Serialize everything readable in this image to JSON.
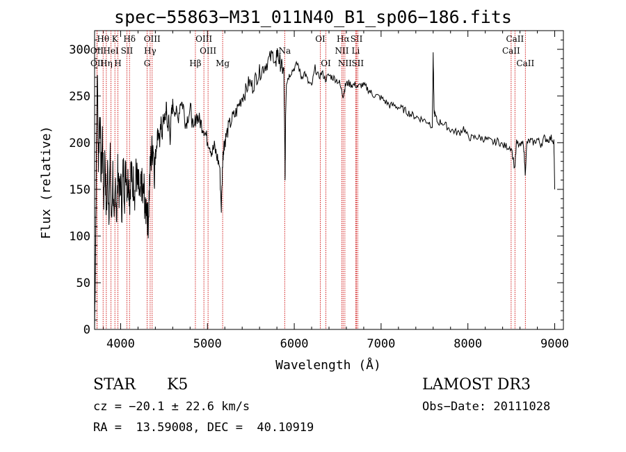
{
  "chart_data": {
    "type": "line",
    "title": "spec−55863−M31_011N40_B1_sp06−186.fits",
    "xlabel": "Wavelength (Å)",
    "ylabel": "Flux (relative)",
    "xlim": [
      3700,
      9100
    ],
    "ylim": [
      0,
      320
    ],
    "xticks": [
      4000,
      5000,
      6000,
      7000,
      8000,
      9000
    ],
    "yticks": [
      0,
      50,
      100,
      150,
      200,
      250,
      300
    ],
    "series": [
      {
        "name": "flux",
        "x": [
          3700,
          3715,
          3730,
          3745,
          3760,
          3775,
          3790,
          3805,
          3820,
          3835,
          3850,
          3865,
          3880,
          3895,
          3910,
          3925,
          3940,
          3955,
          3970,
          3985,
          4000,
          4015,
          4030,
          4045,
          4060,
          4075,
          4090,
          4105,
          4120,
          4135,
          4150,
          4165,
          4180,
          4195,
          4210,
          4225,
          4240,
          4255,
          4270,
          4285,
          4300,
          4315,
          4330,
          4345,
          4360,
          4375,
          4390,
          4405,
          4420,
          4435,
          4450,
          4465,
          4480,
          4495,
          4510,
          4525,
          4540,
          4555,
          4570,
          4585,
          4600,
          4630,
          4660,
          4690,
          4720,
          4750,
          4780,
          4810,
          4840,
          4870,
          4900,
          4930,
          4960,
          4990,
          5020,
          5050,
          5080,
          5110,
          5140,
          5160,
          5175,
          5185,
          5195,
          5210,
          5240,
          5280,
          5320,
          5360,
          5400,
          5440,
          5480,
          5520,
          5560,
          5600,
          5640,
          5680,
          5720,
          5760,
          5790,
          5800,
          5820,
          5840,
          5860,
          5880,
          5890,
          5895,
          5900,
          5910,
          5930,
          5960,
          6000,
          6040,
          6080,
          6120,
          6160,
          6200,
          6240,
          6280,
          6320,
          6360,
          6400,
          6440,
          6480,
          6520,
          6560,
          6575,
          6590,
          6620,
          6660,
          6700,
          6740,
          6780,
          6820,
          6860,
          6900,
          6950,
          7000,
          7050,
          7100,
          7150,
          7200,
          7250,
          7300,
          7350,
          7400,
          7450,
          7500,
          7550,
          7590,
          7600,
          7610,
          7620,
          7650,
          7700,
          7750,
          7800,
          7850,
          7900,
          7950,
          8000,
          8050,
          8100,
          8150,
          8200,
          8250,
          8300,
          8350,
          8400,
          8450,
          8500,
          8540,
          8560,
          8600,
          8640,
          8660,
          8680,
          8720,
          8760,
          8800,
          8840,
          8880,
          8920,
          8960,
          8990,
          9000
        ],
        "values": [
          0,
          120,
          280,
          180,
          240,
          160,
          210,
          140,
          190,
          120,
          170,
          130,
          180,
          110,
          170,
          100,
          160,
          120,
          180,
          140,
          160,
          130,
          175,
          145,
          180,
          150,
          165,
          140,
          175,
          150,
          160,
          145,
          170,
          155,
          150,
          135,
          160,
          140,
          150,
          120,
          140,
          110,
          150,
          180,
          190,
          200,
          170,
          190,
          205,
          215,
          200,
          220,
          210,
          230,
          220,
          240,
          215,
          225,
          205,
          230,
          240,
          235,
          225,
          245,
          240,
          220,
          230,
          235,
          210,
          230,
          225,
          220,
          215,
          205,
          200,
          190,
          195,
          185,
          175,
          130,
          180,
          195,
          200,
          205,
          215,
          225,
          230,
          240,
          250,
          255,
          265,
          260,
          270,
          275,
          280,
          285,
          290,
          295,
          280,
          300,
          290,
          285,
          280,
          275,
          200,
          160,
          230,
          265,
          270,
          275,
          280,
          285,
          270,
          275,
          265,
          260,
          280,
          270,
          275,
          268,
          272,
          270,
          268,
          264,
          250,
          255,
          262,
          264,
          262,
          262,
          260,
          262,
          260,
          256,
          252,
          250,
          248,
          244,
          240,
          240,
          238,
          236,
          233,
          230,
          228,
          226,
          224,
          222,
          218,
          295,
          235,
          230,
          222,
          222,
          218,
          214,
          212,
          210,
          216,
          206,
          205,
          206,
          205,
          204,
          202,
          200,
          202,
          197,
          196,
          195,
          172,
          200,
          196,
          200,
          168,
          200,
          202,
          200,
          204,
          198,
          205,
          203,
          205,
          202,
          150
        ]
      }
    ],
    "lines": [
      {
        "name": "Hθ",
        "wl": 3798,
        "row": 0
      },
      {
        "name": "K",
        "wl": 3934,
        "row": 0
      },
      {
        "name": "Hδ",
        "wl": 4102,
        "row": 0
      },
      {
        "name": "OIII",
        "wl": 4363,
        "row": 0
      },
      {
        "name": "OIII",
        "wl": 4959,
        "row": 0
      },
      {
        "name": "OI",
        "wl": 6300,
        "row": 0
      },
      {
        "name": "Hα",
        "wl": 6563,
        "row": 0
      },
      {
        "name": "SII",
        "wl": 6717,
        "row": 0
      },
      {
        "name": "CaII",
        "wl": 8542,
        "row": 0
      },
      {
        "name": "OII",
        "wl": 3727,
        "row": 1
      },
      {
        "name": "HeI",
        "wl": 3889,
        "row": 1
      },
      {
        "name": "SII",
        "wl": 4072,
        "row": 1
      },
      {
        "name": "Hγ",
        "wl": 4340,
        "row": 1
      },
      {
        "name": "OIII",
        "wl": 5007,
        "row": 1
      },
      {
        "name": "Na",
        "wl": 5890,
        "row": 1
      },
      {
        "name": "NII",
        "wl": 6548,
        "row": 1
      },
      {
        "name": "Li",
        "wl": 6708,
        "row": 1
      },
      {
        "name": "CaII",
        "wl": 8498,
        "row": 1
      },
      {
        "name": "OII",
        "wl": 3729,
        "row": 2
      },
      {
        "name": "Hη",
        "wl": 3835,
        "row": 2
      },
      {
        "name": "H",
        "wl": 3968,
        "row": 2
      },
      {
        "name": "G",
        "wl": 4305,
        "row": 2
      },
      {
        "name": "Hβ",
        "wl": 4861,
        "row": 2
      },
      {
        "name": "Mg",
        "wl": 5175,
        "row": 2
      },
      {
        "name": "OI",
        "wl": 6364,
        "row": 2
      },
      {
        "name": "NII",
        "wl": 6583,
        "row": 2
      },
      {
        "name": "SII",
        "wl": 6731,
        "row": 2
      },
      {
        "name": "CaII",
        "wl": 8662,
        "row": 2
      }
    ],
    "line_color": "#cc0000"
  },
  "info": {
    "class": "STAR",
    "subclass": "K5",
    "survey": "LAMOST DR3",
    "cz": "cz = −20.1 ± 22.6 km/s",
    "obs_date": "Obs−Date: 20111028",
    "radec": "RA =  13.59008, DEC =  40.10919"
  }
}
